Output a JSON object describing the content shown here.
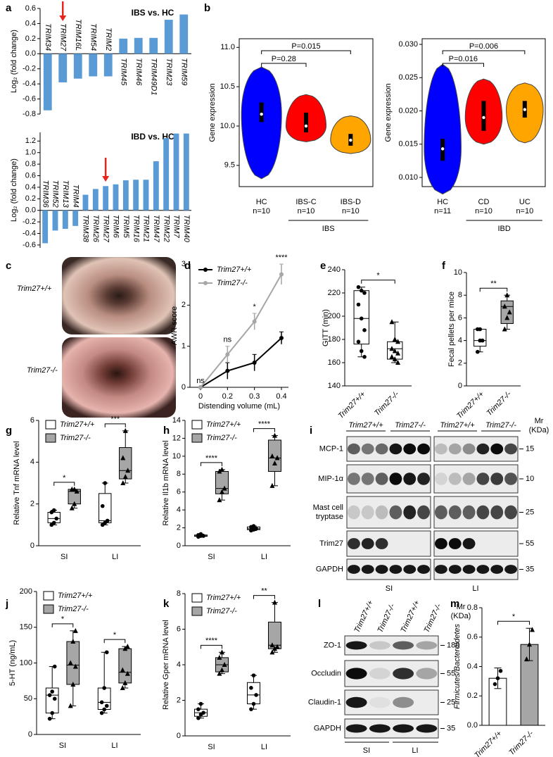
{
  "chart_data": [
    {
      "type": "bar",
      "panel": "a",
      "title": "IBS vs. HC",
      "y_label": "Log₂ (fold change)",
      "categories": [
        "TRIM34",
        "TRIM27",
        "TRIM16L",
        "TRIM54",
        "TRIM2",
        "TRIM45",
        "TRIM46",
        "TRIM49D1",
        "TRIM23",
        "TRIM59"
      ],
      "values": [
        -0.75,
        -0.38,
        -0.33,
        -0.3,
        -0.3,
        0.2,
        0.21,
        0.21,
        0.45,
        0.52
      ],
      "color": "#5b9bd5",
      "ylim": [
        -0.8,
        0.6
      ],
      "yticks": [
        -0.8,
        -0.6,
        -0.4,
        -0.2,
        {
          "value": 0,
          "label": "0.0"
        },
        0.2,
        0.4,
        0.6
      ]
    },
    {
      "type": "bar",
      "title": "IBD vs. HC",
      "y_label": "Log₂ (fold change)",
      "categories": [
        "TRIM36",
        "TRIM52",
        "TRIM13",
        "TRIM4",
        "TRIM38",
        "TRIM26",
        "TRIM27",
        "TRIM6",
        "TRIM5",
        "TRIM16",
        "TRIM21",
        "TRIM47",
        "TRIM22",
        "TRIM7",
        "TRIM40"
      ],
      "values": [
        -0.57,
        -0.35,
        -0.32,
        -0.27,
        0.27,
        0.37,
        0.42,
        0.45,
        0.52,
        0.53,
        0.53,
        0.85,
        1.25,
        1.33,
        1.33
      ],
      "color": "#5b9bd5",
      "ylim": [
        -0.65,
        1.35
      ],
      "yticks": [
        -0.6,
        -0.4,
        -0.2,
        {
          "value": 0,
          "label": "0.0"
        },
        0.2,
        0.4,
        0.6,
        0.8,
        {
          "value": 1,
          "label": "1.0"
        },
        1.2
      ]
    },
    {
      "type": "violin",
      "panel": "b",
      "y_label": "Gene expression",
      "categories": [
        "HC",
        "IBS-C",
        "IBS-D"
      ],
      "n_labels": [
        "n=10",
        "n=10",
        "n=10"
      ],
      "colors": [
        "#0000ff",
        "#ff0000",
        "#ffa500"
      ],
      "min": [
        9.33,
        9.8,
        9.65
      ],
      "q1": [
        10.05,
        9.92,
        9.75
      ],
      "median": [
        10.15,
        10.0,
        9.82
      ],
      "q3": [
        10.3,
        10.17,
        9.9
      ],
      "max": [
        10.75,
        10.4,
        10.13
      ],
      "group": {
        "label": "IBS",
        "from": 1,
        "to": 2
      },
      "comparisons": [
        {
          "label": "P=0.015",
          "from": 0,
          "to": 2
        },
        {
          "label": "P=0.28",
          "from": 0,
          "to": 1
        }
      ],
      "ylim": [
        9.23,
        11.11
      ],
      "yticks": [
        9.5,
        {
          "value": 10,
          "label": "10.0"
        },
        10.5,
        {
          "value": 11,
          "label": "11.0"
        }
      ]
    },
    {
      "type": "violin",
      "y_label": "Gene expression",
      "categories": [
        "HC",
        "CD",
        "UC"
      ],
      "n_labels": [
        "n=11",
        "n=10",
        "n=10"
      ],
      "colors": [
        "#0000ff",
        "#ff0000",
        "#ffa500"
      ],
      "min": [
        0.0075,
        0.015,
        0.0152
      ],
      "q1": [
        0.0125,
        0.017,
        0.019
      ],
      "median": [
        0.0143,
        0.019,
        0.0202
      ],
      "q3": [
        0.0158,
        0.0215,
        0.0215
      ],
      "max": [
        0.027,
        0.0248,
        0.0242
      ],
      "group": {
        "label": "IBD",
        "from": 1,
        "to": 2
      },
      "comparisons": [
        {
          "label": "P=0.006",
          "from": 0,
          "to": 2
        },
        {
          "label": "P=0.016",
          "from": 0,
          "to": 1
        }
      ],
      "ylim": [
        0.00862,
        0.03085
      ],
      "yticks": [
        {
          "value": 0.01,
          "label": "0.010"
        },
        {
          "value": 0.015,
          "label": "0.015"
        },
        {
          "value": 0.02,
          "label": "0.020"
        },
        {
          "value": 0.025,
          "label": "0.025"
        },
        {
          "value": 0.03,
          "label": "0.030"
        }
      ]
    },
    {
      "type": "line",
      "panel": "d",
      "y_label": "AWR score",
      "x_label": "Distending volume (mL)",
      "categories": [
        "0",
        "0.2",
        "0.3",
        "0.4"
      ],
      "series": [
        {
          "name": "Trim27+/+",
          "color": "#000000",
          "values": [
            0,
            0.4,
            0.6,
            1.2
          ],
          "errors": [
            0,
            0.2,
            0.2,
            0.15
          ]
        },
        {
          "name": "Trim27-/-",
          "color": "#a6a6a6",
          "values": [
            0,
            0.8,
            1.6,
            2.75
          ],
          "errors": [
            0,
            0.2,
            0.2,
            0.25
          ]
        }
      ],
      "annotations": [
        "ns",
        "ns",
        "*",
        "****"
      ],
      "ylim": [
        0,
        3
      ],
      "yticks": [
        0,
        1,
        2,
        3
      ]
    },
    {
      "type": "box",
      "panel": "e",
      "y_label": "GITT (min)",
      "categories": [
        "Trim27+/+",
        "Trim27-/-"
      ],
      "colors": [
        "#ffffff",
        "#ffffff"
      ],
      "markers": [
        "circle",
        "triangle"
      ],
      "boxes": [
        {
          "min": 165,
          "q1": 176,
          "median": 198,
          "q3": 222,
          "max": 225,
          "points": [
            225,
            222,
            220,
            210,
            198,
            188,
            178,
            170,
            165
          ]
        },
        {
          "min": 160,
          "q1": 163,
          "median": 172,
          "q3": 178,
          "max": 195,
          "points": [
            195,
            180,
            178,
            172,
            170,
            168,
            165,
            163,
            160
          ]
        }
      ],
      "significance": [
        "*"
      ],
      "ylim": [
        140,
        240
      ],
      "yticks": [
        140,
        160,
        180,
        200,
        220,
        240
      ]
    },
    {
      "type": "box",
      "panel": "f",
      "y_label": "Fecal pellets per mice",
      "categories": [
        "Trim27+/+",
        "Trim27-/-"
      ],
      "colors": [
        "#ffffff",
        "#a6a6a6"
      ],
      "markers": [
        "circle",
        "triangle"
      ],
      "boxes": [
        {
          "min": 3,
          "q1": 3.5,
          "median": 4,
          "q3": 5,
          "max": 5,
          "points": [
            3,
            4,
            4,
            5,
            5
          ]
        },
        {
          "min": 5,
          "q1": 5.5,
          "median": 7,
          "q3": 7.5,
          "max": 8,
          "points": [
            5,
            6,
            6.5,
            7,
            8
          ]
        }
      ],
      "significance": [
        "**"
      ],
      "ylim": [
        0,
        10
      ],
      "yticks": [
        0,
        2,
        4,
        6,
        8,
        10
      ]
    },
    {
      "type": "box",
      "panel": "g",
      "y_label": "Relative Tnf mRNA level",
      "categories": [
        "SI",
        "LI"
      ],
      "series": [
        {
          "name": "Trim27+/+",
          "color": "#ffffff",
          "marker": "circle",
          "boxes": [
            {
              "min": 1.0,
              "q1": 1.1,
              "median": 1.3,
              "q3": 1.6,
              "max": 1.7,
              "points": [
                1.0,
                1.1,
                1.3,
                1.6,
                1.7
              ]
            },
            {
              "min": 1.0,
              "q1": 1.1,
              "median": 1.2,
              "q3": 2.5,
              "max": 3.0,
              "points": [
                1.0,
                1.1,
                1.2,
                1.9,
                3.0
              ]
            }
          ]
        },
        {
          "name": "Trim27-/-",
          "color": "#a6a6a6",
          "marker": "triangle",
          "boxes": [
            {
              "min": 1.8,
              "q1": 2.0,
              "median": 2.6,
              "q3": 2.7,
              "max": 2.7,
              "points": [
                1.8,
                2.0,
                2.6,
                2.7,
                2.7
              ]
            },
            {
              "min": 3.0,
              "q1": 3.2,
              "median": 3.6,
              "q3": 4.7,
              "max": 5.5,
              "points": [
                3.0,
                3.3,
                3.6,
                4.2,
                5.5
              ]
            }
          ]
        }
      ],
      "significance": [
        "*",
        "***"
      ],
      "ylim": [
        0,
        6
      ],
      "yticks": [
        0,
        2,
        4,
        6
      ]
    },
    {
      "type": "box",
      "panel": "h",
      "y_label": "Relative Il1b mRNA level",
      "categories": [
        "SI",
        "LI"
      ],
      "series": [
        {
          "name": "Trim27+/+",
          "color": "#ffffff",
          "marker": "circle",
          "boxes": [
            {
              "min": 1.0,
              "q1": 1.05,
              "median": 1.1,
              "q3": 1.2,
              "max": 1.3,
              "points": [
                1.0,
                1.1,
                1.1,
                1.2,
                1.3
              ]
            },
            {
              "min": 1.7,
              "q1": 1.8,
              "median": 1.9,
              "q3": 2.1,
              "max": 2.2,
              "points": [
                1.7,
                1.8,
                1.9,
                2.1,
                2.2
              ]
            }
          ]
        },
        {
          "name": "Trim27-/-",
          "color": "#a6a6a6",
          "marker": "triangle",
          "boxes": [
            {
              "min": 5.1,
              "q1": 5.8,
              "median": 6.4,
              "q3": 8.3,
              "max": 8.5,
              "points": [
                5.1,
                6.0,
                6.4,
                8.3,
                8.5
              ]
            },
            {
              "min": 6.7,
              "q1": 8.3,
              "median": 9.8,
              "q3": 11.8,
              "max": 12.3,
              "points": [
                6.7,
                9.2,
                9.8,
                10.0,
                12.3
              ]
            }
          ]
        }
      ],
      "significance": [
        "****",
        "****"
      ],
      "ylim": [
        0,
        14
      ],
      "yticks": [
        0,
        2,
        4,
        6,
        8,
        10,
        12,
        14
      ]
    },
    {
      "type": "box",
      "panel": "j",
      "y_label": "5-HT (ng/mL)",
      "categories": [
        "SI",
        "LI"
      ],
      "series": [
        {
          "name": "Trim27+/+",
          "color": "#ffffff",
          "marker": "circle",
          "boxes": [
            {
              "min": 22,
              "q1": 30,
              "median": 55,
              "q3": 65,
              "max": 95,
              "points": [
                22,
                30,
                50,
                55,
                60,
                95
              ]
            },
            {
              "min": 30,
              "q1": 35,
              "median": 45,
              "q3": 65,
              "max": 115,
              "points": [
                30,
                35,
                40,
                45,
                65,
                115
              ]
            }
          ]
        },
        {
          "name": "Trim27-/-",
          "color": "#a6a6a6",
          "marker": "triangle",
          "boxes": [
            {
              "min": 40,
              "q1": 70,
              "median": 97,
              "q3": 130,
              "max": 145,
              "points": [
                40,
                70,
                95,
                100,
                130,
                145
              ]
            },
            {
              "min": 65,
              "q1": 72,
              "median": 87,
              "q3": 120,
              "max": 123,
              "points": [
                65,
                72,
                85,
                90,
                120,
                123
              ]
            }
          ]
        }
      ],
      "significance": [
        "*",
        "*"
      ],
      "ylim": [
        0,
        200
      ],
      "yticks": [
        0,
        50,
        100,
        150,
        200
      ]
    },
    {
      "type": "box",
      "panel": "k",
      "y_label": "Relative Gper mRNA level",
      "categories": [
        "SI",
        "LI"
      ],
      "series": [
        {
          "name": "Trim27+/+",
          "color": "#ffffff",
          "marker": "circle",
          "boxes": [
            {
              "min": 1.0,
              "q1": 1.1,
              "median": 1.3,
              "q3": 1.5,
              "max": 1.8,
              "points": [
                1.0,
                1.2,
                1.3,
                1.5,
                1.8
              ]
            },
            {
              "min": 1.5,
              "q1": 1.8,
              "median": 2.3,
              "q3": 3.0,
              "max": 3.4,
              "points": [
                1.5,
                1.8,
                2.3,
                2.7,
                3.4
              ]
            }
          ]
        },
        {
          "name": "Trim27-/-",
          "color": "#a6a6a6",
          "marker": "triangle",
          "boxes": [
            {
              "min": 3.5,
              "q1": 3.6,
              "median": 4.0,
              "q3": 4.4,
              "max": 4.7,
              "points": [
                3.5,
                3.7,
                4.0,
                4.4,
                4.7
              ]
            },
            {
              "min": 4.7,
              "q1": 4.9,
              "median": 5.1,
              "q3": 6.4,
              "max": 7.5,
              "points": [
                4.7,
                4.9,
                5.0,
                5.1,
                7.5
              ]
            }
          ]
        }
      ],
      "significance": [
        "****",
        "**"
      ],
      "ylim": [
        0,
        8
      ],
      "yticks": [
        0,
        2,
        4,
        6,
        8
      ]
    },
    {
      "type": "bar",
      "panel": "m",
      "y_label": "Firmicutes/Bacteroidetes",
      "categories": [
        "Trim27+/+",
        "Trim27-/-"
      ],
      "values": [
        0.32,
        0.55
      ],
      "errors": [
        0.07,
        0.11
      ],
      "colors": [
        "#ffffff",
        "#a6a6a6"
      ],
      "markers": [
        "circle",
        "triangle"
      ],
      "points": [
        [
          0.28,
          0.32,
          0.37
        ],
        [
          0.45,
          0.55,
          0.65
        ]
      ],
      "significance": [
        "*"
      ],
      "ylim": [
        0,
        0.8
      ],
      "yticks": [
        {
          "value": 0,
          "label": "0.0"
        },
        0.2,
        0.4,
        0.6,
        0.8
      ]
    }
  ],
  "images": {
    "panel": "c",
    "labels": [
      "Trim27+/+",
      "Trim27-/-"
    ]
  },
  "blot_i": {
    "panel": "i",
    "groups": [
      "Trim27+/+",
      "Trim27-/-",
      "Trim27+/+",
      "Trim27-/-"
    ],
    "rows": [
      "MCP-1",
      "MIP-1α",
      [
        "Mast cell",
        "tryptase"
      ],
      "Trim27",
      "GAPDH"
    ],
    "mw": [
      15,
      10,
      25,
      55,
      35
    ],
    "mw_header": [
      "Mr",
      "(KDa)"
    ],
    "tissues": [
      "SI",
      "LI"
    ]
  },
  "blot_l": {
    "panel": "l",
    "lanes": [
      "Trim27+/+",
      "Trim27-/-",
      "Trim27+/+",
      "Trim27-/-"
    ],
    "rows": [
      "ZO-1",
      "Occludin",
      "Claudin-1",
      "GAPDH"
    ],
    "mw": [
      180,
      55,
      25,
      35
    ],
    "mw_header": [
      "Mr",
      "(KDa)"
    ],
    "tissues": [
      "SI",
      "LI"
    ]
  }
}
